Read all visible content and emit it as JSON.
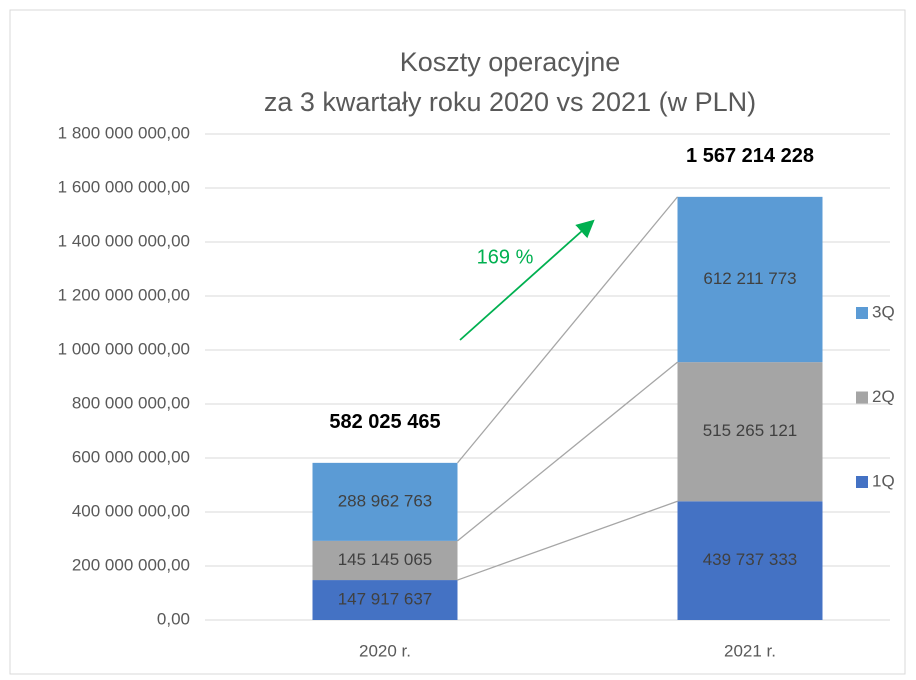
{
  "chart_data": {
    "type": "stacked_bar",
    "title": "Koszty operacyjne",
    "subtitle": "za 3 kwartały roku 2020 vs 2021 (w PLN)",
    "categories": [
      "2020 r.",
      "2021 r."
    ],
    "series": [
      {
        "name": "1Q",
        "color": "#4472c4",
        "values": [
          147917637,
          439737333
        ],
        "value_labels": [
          "147 917 637",
          "439 737 333"
        ]
      },
      {
        "name": "2Q",
        "color": "#a5a5a5",
        "values": [
          145145065,
          515265121
        ],
        "value_labels": [
          "145 145 065",
          "515 265 121"
        ]
      },
      {
        "name": "3Q",
        "color": "#5b9bd5",
        "values": [
          288962763,
          612211773
        ],
        "value_labels": [
          "288 962 763",
          "612 211 773"
        ]
      }
    ],
    "totals": [
      582025465,
      1567214228
    ],
    "total_labels": [
      "582 025 465",
      "1 567 214 228"
    ],
    "annotation": "169 %",
    "annotation_color": "#00b050",
    "ylim": [
      0,
      1800000000
    ],
    "yticks": [
      {
        "value": 0,
        "label": "0,00"
      },
      {
        "value": 200000000,
        "label": "200 000 000,00"
      },
      {
        "value": 400000000,
        "label": "400 000 000,00"
      },
      {
        "value": 600000000,
        "label": "600 000 000,00"
      },
      {
        "value": 800000000,
        "label": "800 000 000,00"
      },
      {
        "value": 1000000000,
        "label": "1 000 000 000,00"
      },
      {
        "value": 1200000000,
        "label": "1 200 000 000,00"
      },
      {
        "value": 1400000000,
        "label": "1 400 000 000,00"
      },
      {
        "value": 1600000000,
        "label": "1 600 000 000,00"
      },
      {
        "value": 1800000000,
        "label": "1 800 000 000,00"
      }
    ],
    "grid": true,
    "legend": "right"
  }
}
